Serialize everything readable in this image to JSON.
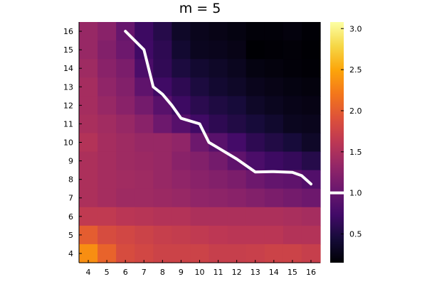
{
  "chart_data": {
    "type": "heatmap",
    "title": "m = 5",
    "xlabel": "",
    "ylabel": "",
    "x": [
      4,
      5,
      6,
      7,
      8,
      9,
      10,
      11,
      12,
      13,
      14,
      15,
      16
    ],
    "y": [
      4,
      5,
      6,
      7,
      8,
      9,
      10,
      11,
      12,
      13,
      14,
      15,
      16
    ],
    "x_tick_labels": [
      "4",
      "5",
      "6",
      "7",
      "8",
      "9",
      "10",
      "11",
      "12",
      "13",
      "14",
      "15",
      "16"
    ],
    "y_tick_labels": [
      "4",
      "5",
      "6",
      "7",
      "8",
      "9",
      "10",
      "11",
      "12",
      "13",
      "14",
      "15",
      "16"
    ],
    "z_rows_top_to_bottom": [
      [
        1.35,
        1.25,
        1.0,
        0.7,
        0.55,
        0.35,
        0.28,
        0.25,
        0.22,
        0.18,
        0.18,
        0.2,
        0.16
      ],
      [
        1.35,
        1.2,
        1.05,
        0.72,
        0.6,
        0.4,
        0.3,
        0.28,
        0.25,
        0.15,
        0.16,
        0.17,
        0.15
      ],
      [
        1.4,
        1.25,
        1.15,
        0.8,
        0.62,
        0.48,
        0.4,
        0.35,
        0.3,
        0.22,
        0.2,
        0.18,
        0.16
      ],
      [
        1.45,
        1.3,
        1.2,
        0.95,
        0.72,
        0.6,
        0.48,
        0.4,
        0.35,
        0.28,
        0.25,
        0.22,
        0.2
      ],
      [
        1.45,
        1.35,
        1.25,
        1.1,
        0.9,
        0.7,
        0.58,
        0.5,
        0.45,
        0.35,
        0.3,
        0.26,
        0.24
      ],
      [
        1.48,
        1.42,
        1.35,
        1.25,
        1.05,
        0.88,
        0.72,
        0.6,
        0.52,
        0.45,
        0.38,
        0.3,
        0.28
      ],
      [
        1.55,
        1.45,
        1.4,
        1.35,
        1.35,
        1.3,
        1.05,
        0.9,
        0.75,
        0.6,
        0.52,
        0.45,
        0.35
      ],
      [
        1.5,
        1.45,
        1.4,
        1.38,
        1.35,
        1.25,
        1.2,
        1.1,
        0.95,
        0.8,
        0.7,
        0.65,
        0.55
      ],
      [
        1.5,
        1.45,
        1.42,
        1.4,
        1.35,
        1.3,
        1.25,
        1.2,
        1.15,
        1.05,
        0.98,
        0.95,
        0.85
      ],
      [
        1.5,
        1.45,
        1.4,
        1.4,
        1.38,
        1.35,
        1.3,
        1.28,
        1.25,
        1.2,
        1.15,
        1.1,
        1.05
      ],
      [
        1.65,
        1.65,
        1.6,
        1.58,
        1.55,
        1.55,
        1.5,
        1.5,
        1.5,
        1.5,
        1.5,
        1.48,
        1.45
      ],
      [
        2.0,
        1.85,
        1.8,
        1.75,
        1.7,
        1.68,
        1.65,
        1.62,
        1.6,
        1.6,
        1.6,
        1.55,
        1.55
      ],
      [
        2.35,
        2.05,
        1.85,
        1.8,
        1.75,
        1.75,
        1.75,
        1.7,
        1.7,
        1.72,
        1.75,
        1.75,
        1.7
      ]
    ],
    "zlim": [
      0.15,
      3.08
    ],
    "colormap": "inferno",
    "colorbar_ticks": [
      0.5,
      1.0,
      1.5,
      2.0,
      2.5,
      3.0
    ],
    "colorbar_tick_labels": [
      "0.5",
      "1.0",
      "1.5",
      "2.0",
      "2.5",
      "3.0"
    ],
    "colorbar_marker": 1.0,
    "line_series": {
      "color": "#ffffff",
      "x": [
        6,
        7,
        7.5,
        8,
        8.5,
        9,
        10,
        10.5,
        11,
        11.5,
        12,
        13,
        14,
        15,
        15.5,
        16
      ],
      "y": [
        16,
        15,
        13,
        12.6,
        12,
        11.3,
        11,
        10,
        9.7,
        9.4,
        9.1,
        8.4,
        8.42,
        8.38,
        8.2,
        7.75
      ]
    }
  }
}
